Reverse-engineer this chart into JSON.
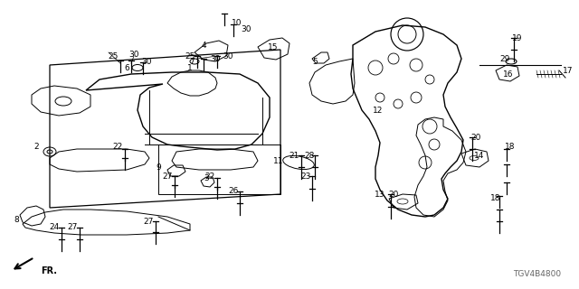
{
  "diagram_code": "TGV4B4800",
  "bg_color": "#ffffff",
  "fig_w": 6.4,
  "fig_h": 3.2,
  "dpi": 100
}
